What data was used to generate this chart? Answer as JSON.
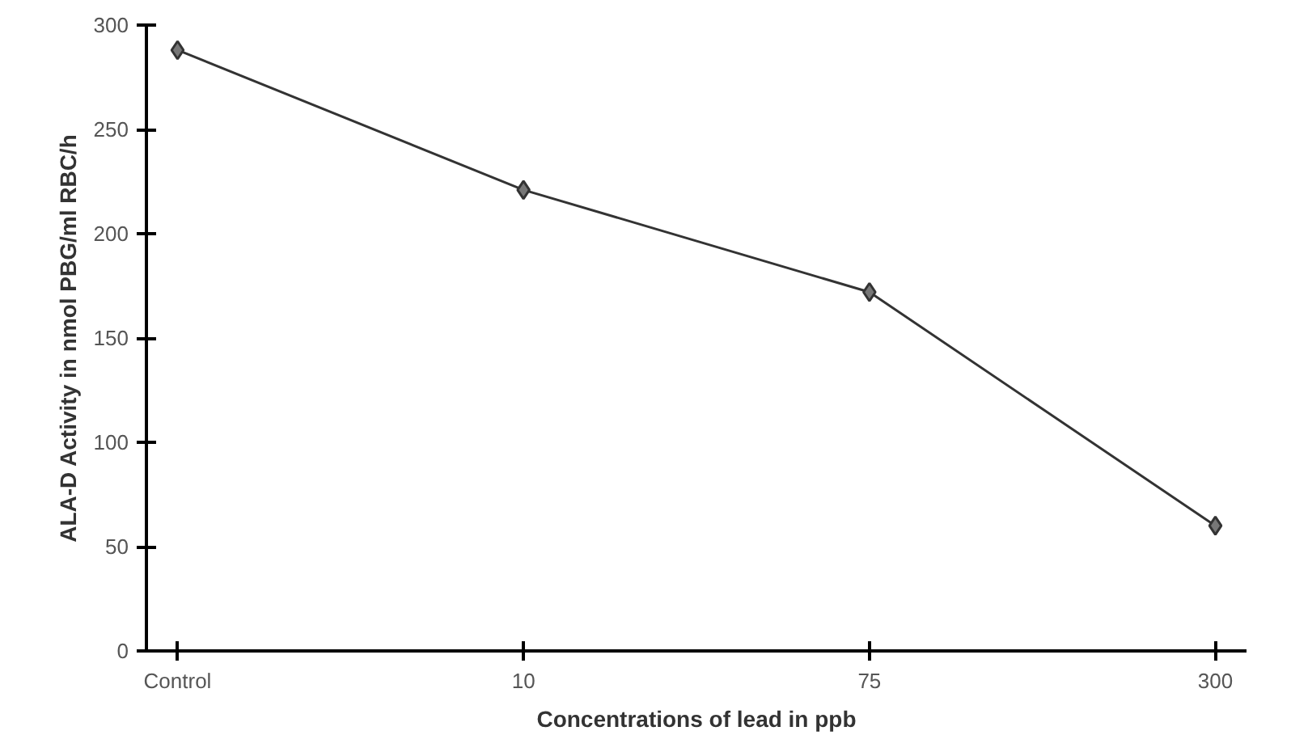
{
  "chart_data": {
    "type": "line",
    "xlabel": "Concentrations of lead in ppb",
    "ylabel": "ALA-D Activity in nmol PBG/ml RBC/h",
    "categories": [
      "Control",
      "10",
      "75",
      "300"
    ],
    "series": [
      {
        "color": "#333333",
        "values": [
          288,
          221,
          172,
          60
        ]
      }
    ],
    "ylim": [
      0,
      300
    ],
    "yticks": [
      0,
      50,
      100,
      150,
      200,
      250,
      300
    ],
    "grid": false,
    "marker": "diamond",
    "line_style": "solid"
  }
}
